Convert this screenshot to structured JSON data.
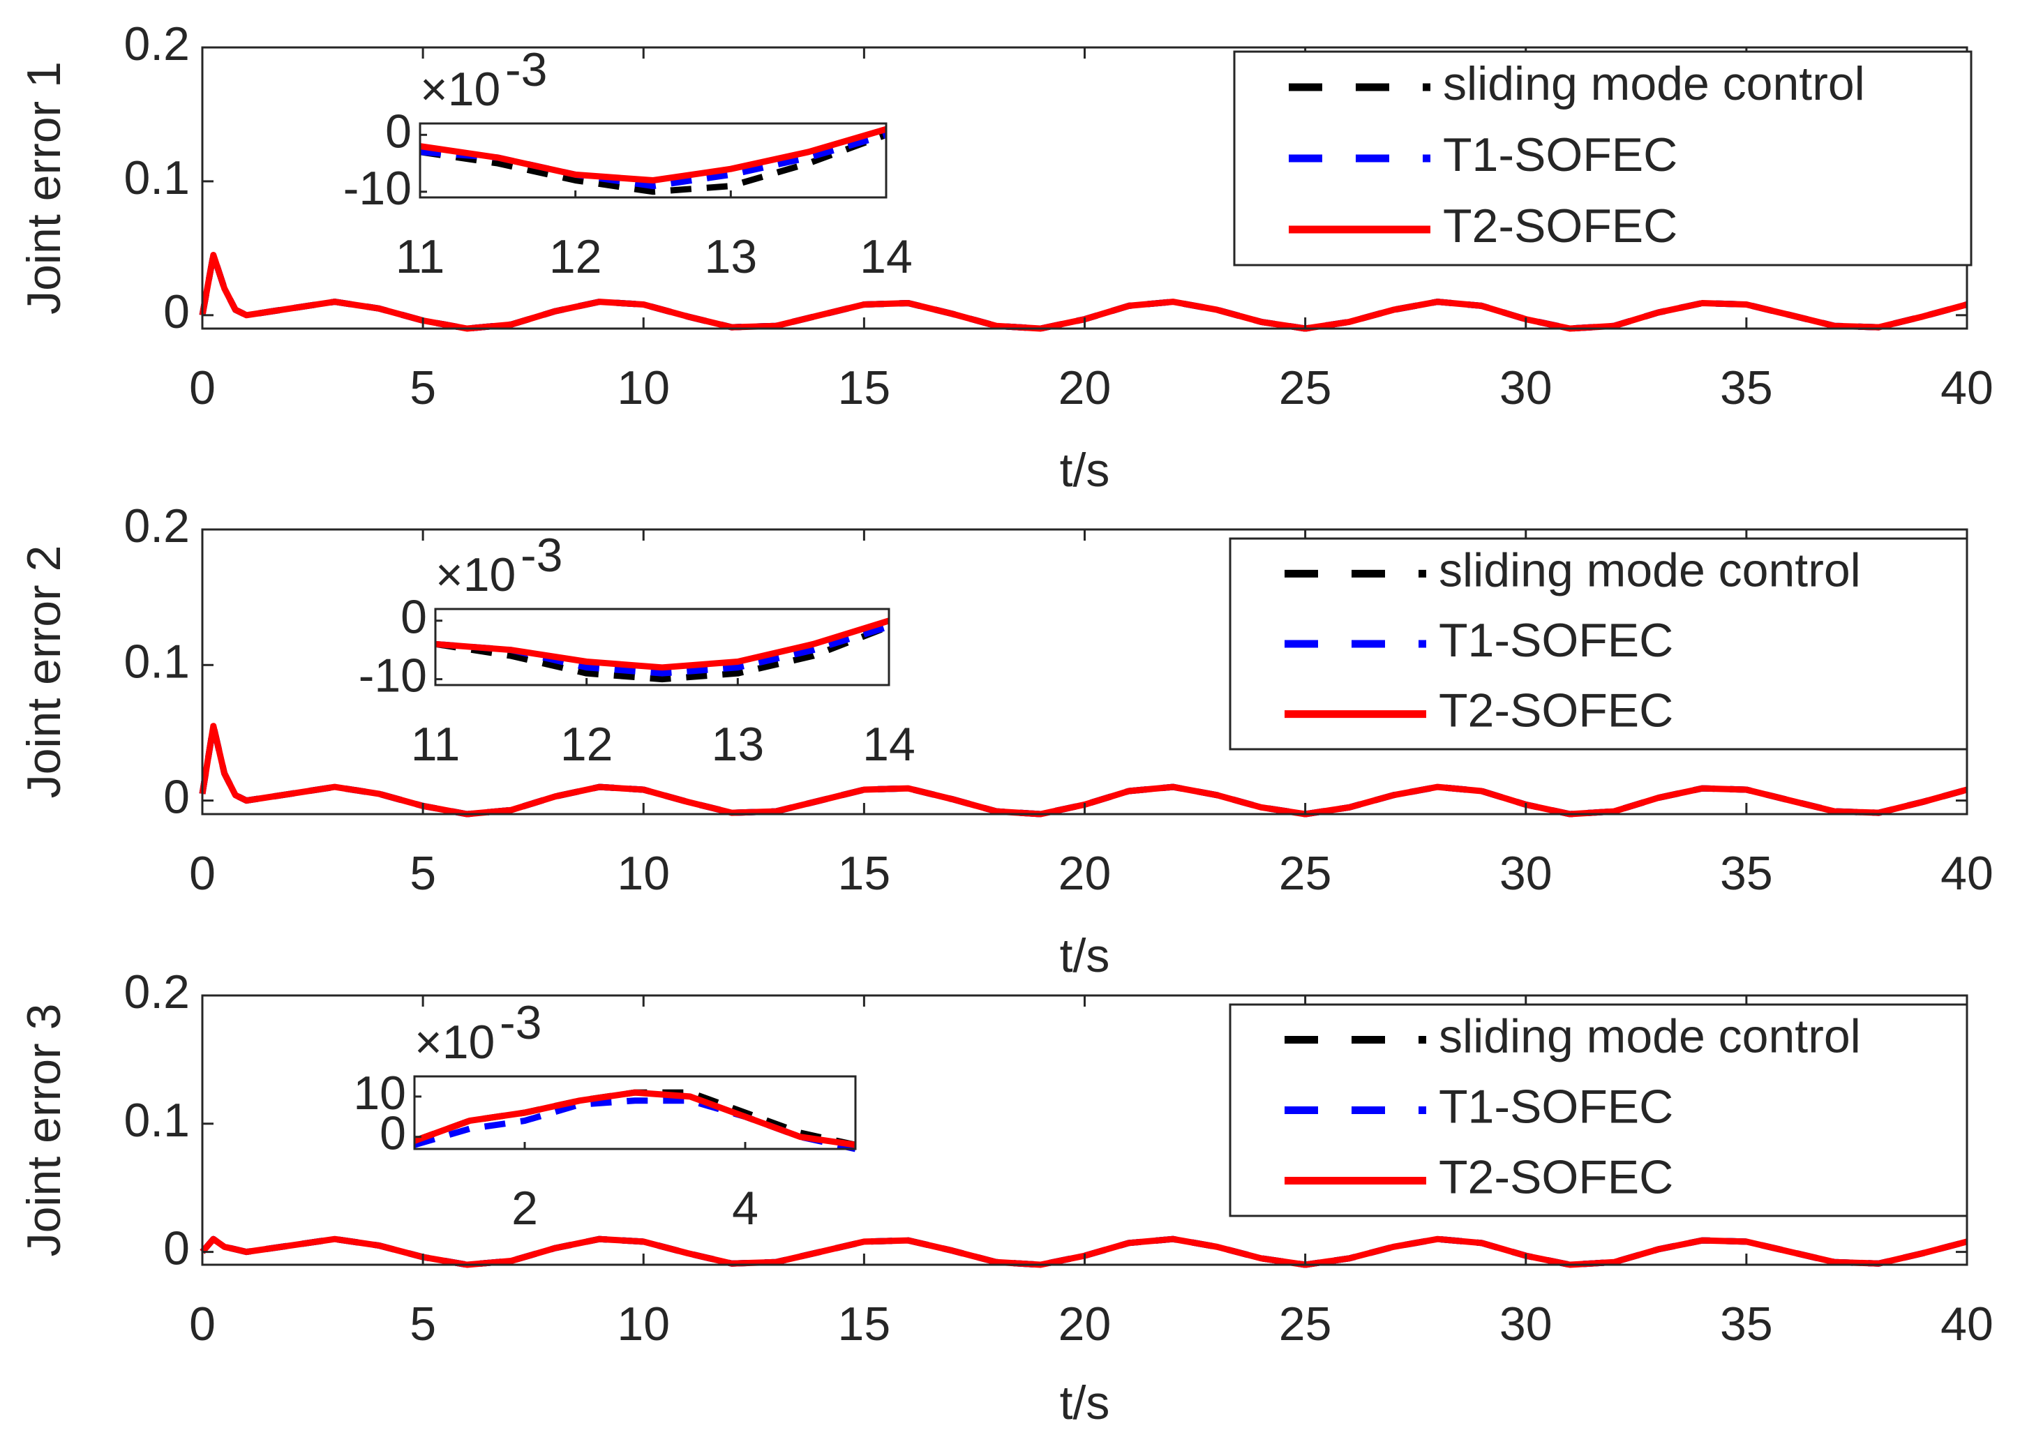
{
  "chart_data": [
    {
      "type": "line",
      "ylabel": "Joint error 1",
      "xlabel": "t/s",
      "legend": "upper right",
      "xlim": [
        0,
        40
      ],
      "xticks": [
        0,
        5,
        10,
        15,
        20,
        25,
        30,
        35,
        40
      ],
      "ylim": [
        -0.01,
        0.2
      ],
      "yticks": [
        0,
        0.1,
        0.2
      ],
      "x": [
        0,
        0.25,
        0.5,
        0.75,
        1,
        2,
        3,
        4,
        5,
        6,
        7,
        8,
        9,
        10,
        11,
        12,
        13,
        14,
        15,
        16,
        17,
        18,
        19,
        20,
        21,
        22,
        23,
        24,
        25,
        26,
        27,
        28,
        29,
        30,
        31,
        32,
        33,
        34,
        35,
        36,
        37,
        38,
        39,
        40
      ],
      "series": [
        {
          "name": "sliding mode control",
          "color": "#000000",
          "linestyle": "dashed",
          "values": [
            0,
            0.045,
            0.02,
            0.004,
            0,
            0.005,
            0.01,
            0.005,
            -0.004,
            -0.01,
            -0.007,
            0.003,
            0.01,
            0.008,
            -0.001,
            -0.009,
            -0.008,
            0,
            0.008,
            0.009,
            0.001,
            -0.008,
            -0.01,
            -0.003,
            0.007,
            0.01,
            0.004,
            -0.005,
            -0.01,
            -0.005,
            0.004,
            0.01,
            0.007,
            -0.003,
            -0.01,
            -0.008,
            0.002,
            0.009,
            0.008,
            0,
            -0.008,
            -0.009,
            -0.001,
            0.008
          ]
        },
        {
          "name": "T1-SOFEC",
          "color": "#0000ff",
          "linestyle": "dashed",
          "values": [
            0,
            0.045,
            0.02,
            0.004,
            0,
            0.005,
            0.01,
            0.005,
            -0.004,
            -0.01,
            -0.007,
            0.003,
            0.01,
            0.008,
            -0.001,
            -0.009,
            -0.008,
            0,
            0.008,
            0.009,
            0.001,
            -0.008,
            -0.01,
            -0.003,
            0.007,
            0.01,
            0.004,
            -0.005,
            -0.01,
            -0.005,
            0.004,
            0.01,
            0.007,
            -0.003,
            -0.01,
            -0.008,
            0.002,
            0.009,
            0.008,
            0,
            -0.008,
            -0.009,
            -0.001,
            0.008
          ]
        },
        {
          "name": "T2-SOFEC",
          "color": "#ff0000",
          "linestyle": "solid",
          "values": [
            0,
            0.045,
            0.02,
            0.004,
            0,
            0.005,
            0.01,
            0.005,
            -0.004,
            -0.01,
            -0.007,
            0.003,
            0.01,
            0.008,
            -0.001,
            -0.009,
            -0.008,
            0,
            0.008,
            0.009,
            0.001,
            -0.008,
            -0.01,
            -0.003,
            0.007,
            0.01,
            0.004,
            -0.005,
            -0.01,
            -0.005,
            0.004,
            0.01,
            0.007,
            -0.003,
            -0.01,
            -0.008,
            0.002,
            0.009,
            0.008,
            0,
            -0.008,
            -0.009,
            -0.001,
            0.008
          ]
        }
      ],
      "inset": {
        "multiplier": "×10",
        "exponent": "-3",
        "xlim": [
          11,
          14
        ],
        "xticks": [
          11,
          12,
          13,
          14
        ],
        "ylim": [
          -11,
          2
        ],
        "yticks": [
          -10,
          0
        ],
        "x": [
          11,
          11.5,
          12,
          12.5,
          13,
          13.5,
          14
        ],
        "series": [
          {
            "color": "#000000",
            "linestyle": "dashed",
            "values": [
              -3,
              -5,
              -8,
              -10,
              -9,
              -5,
              0
            ]
          },
          {
            "color": "#0000ff",
            "linestyle": "dashed",
            "values": [
              -3,
              -4,
              -7,
              -9,
              -7,
              -4,
              0
            ]
          },
          {
            "color": "#ff0000",
            "linestyle": "solid",
            "values": [
              -2,
              -4,
              -7,
              -8,
              -6,
              -3,
              1
            ]
          }
        ]
      }
    },
    {
      "type": "line",
      "ylabel": "Joint error 2",
      "xlabel": "t/s",
      "legend": "upper right",
      "xlim": [
        0,
        40
      ],
      "xticks": [
        0,
        5,
        10,
        15,
        20,
        25,
        30,
        35,
        40
      ],
      "ylim": [
        -0.01,
        0.2
      ],
      "yticks": [
        0,
        0.1,
        0.2
      ],
      "x": [
        0,
        0.25,
        0.5,
        0.75,
        1,
        2,
        3,
        4,
        5,
        6,
        7,
        8,
        9,
        10,
        11,
        12,
        13,
        14,
        15,
        16,
        17,
        18,
        19,
        20,
        21,
        22,
        23,
        24,
        25,
        26,
        27,
        28,
        29,
        30,
        31,
        32,
        33,
        34,
        35,
        36,
        37,
        38,
        39,
        40
      ],
      "series": [
        {
          "name": "sliding mode control",
          "color": "#000000",
          "linestyle": "dashed",
          "values": [
            0.005,
            0.055,
            0.02,
            0.004,
            0,
            0.005,
            0.01,
            0.005,
            -0.004,
            -0.01,
            -0.007,
            0.003,
            0.01,
            0.008,
            -0.001,
            -0.009,
            -0.008,
            0,
            0.008,
            0.009,
            0.001,
            -0.008,
            -0.01,
            -0.003,
            0.007,
            0.01,
            0.004,
            -0.005,
            -0.01,
            -0.005,
            0.004,
            0.01,
            0.007,
            -0.003,
            -0.01,
            -0.008,
            0.002,
            0.009,
            0.008,
            0,
            -0.008,
            -0.009,
            -0.001,
            0.008
          ]
        },
        {
          "name": "T1-SOFEC",
          "color": "#0000ff",
          "linestyle": "dashed",
          "values": [
            0.005,
            0.055,
            0.02,
            0.004,
            0,
            0.005,
            0.01,
            0.005,
            -0.004,
            -0.01,
            -0.007,
            0.003,
            0.01,
            0.008,
            -0.001,
            -0.009,
            -0.008,
            0,
            0.008,
            0.009,
            0.001,
            -0.008,
            -0.01,
            -0.003,
            0.007,
            0.01,
            0.004,
            -0.005,
            -0.01,
            -0.005,
            0.004,
            0.01,
            0.007,
            -0.003,
            -0.01,
            -0.008,
            0.002,
            0.009,
            0.008,
            0,
            -0.008,
            -0.009,
            -0.001,
            0.008
          ]
        },
        {
          "name": "T2-SOFEC",
          "color": "#ff0000",
          "linestyle": "solid",
          "values": [
            0.005,
            0.055,
            0.02,
            0.004,
            0,
            0.005,
            0.01,
            0.005,
            -0.004,
            -0.01,
            -0.007,
            0.003,
            0.01,
            0.008,
            -0.001,
            -0.009,
            -0.008,
            0,
            0.008,
            0.009,
            0.001,
            -0.008,
            -0.01,
            -0.003,
            0.007,
            0.01,
            0.004,
            -0.005,
            -0.01,
            -0.005,
            0.004,
            0.01,
            0.007,
            -0.003,
            -0.01,
            -0.008,
            0.002,
            0.009,
            0.008,
            0,
            -0.008,
            -0.009,
            -0.001,
            0.008
          ]
        }
      ],
      "inset": {
        "multiplier": "×10",
        "exponent": "-3",
        "xlim": [
          11,
          14
        ],
        "xticks": [
          11,
          12,
          13,
          14
        ],
        "ylim": [
          -11,
          2
        ],
        "yticks": [
          -10,
          0
        ],
        "x": [
          11,
          11.5,
          12,
          12.5,
          13,
          13.5,
          14
        ],
        "series": [
          {
            "color": "#000000",
            "linestyle": "dashed",
            "values": [
              -4,
              -6,
              -9,
              -10,
              -9,
              -6,
              -1
            ]
          },
          {
            "color": "#0000ff",
            "linestyle": "dashed",
            "values": [
              -4,
              -5,
              -8,
              -9,
              -8,
              -5,
              -1
            ]
          },
          {
            "color": "#ff0000",
            "linestyle": "solid",
            "values": [
              -4,
              -5,
              -7,
              -8,
              -7,
              -4,
              0
            ]
          }
        ]
      }
    },
    {
      "type": "line",
      "ylabel": "Joint error 3",
      "xlabel": "t/s",
      "legend": "upper right",
      "xlim": [
        0,
        40
      ],
      "xticks": [
        0,
        5,
        10,
        15,
        20,
        25,
        30,
        35,
        40
      ],
      "ylim": [
        -0.01,
        0.2
      ],
      "yticks": [
        0,
        0.1,
        0.2
      ],
      "x": [
        0,
        0.25,
        0.5,
        0.75,
        1,
        2,
        3,
        4,
        5,
        6,
        7,
        8,
        9,
        10,
        11,
        12,
        13,
        14,
        15,
        16,
        17,
        18,
        19,
        20,
        21,
        22,
        23,
        24,
        25,
        26,
        27,
        28,
        29,
        30,
        31,
        32,
        33,
        34,
        35,
        36,
        37,
        38,
        39,
        40
      ],
      "series": [
        {
          "name": "sliding mode control",
          "color": "#000000",
          "linestyle": "dashed",
          "values": [
            0,
            0.01,
            0.004,
            0.002,
            0,
            0.005,
            0.01,
            0.005,
            -0.004,
            -0.01,
            -0.007,
            0.003,
            0.01,
            0.008,
            -0.001,
            -0.009,
            -0.008,
            0,
            0.008,
            0.009,
            0.001,
            -0.008,
            -0.01,
            -0.003,
            0.007,
            0.01,
            0.004,
            -0.005,
            -0.01,
            -0.005,
            0.004,
            0.01,
            0.007,
            -0.003,
            -0.01,
            -0.008,
            0.002,
            0.009,
            0.008,
            0,
            -0.008,
            -0.009,
            -0.001,
            0.008
          ]
        },
        {
          "name": "T1-SOFEC",
          "color": "#0000ff",
          "linestyle": "dashed",
          "values": [
            0,
            0.01,
            0.004,
            0.002,
            0,
            0.005,
            0.01,
            0.005,
            -0.004,
            -0.01,
            -0.007,
            0.003,
            0.01,
            0.008,
            -0.001,
            -0.009,
            -0.008,
            0,
            0.008,
            0.009,
            0.001,
            -0.008,
            -0.01,
            -0.003,
            0.007,
            0.01,
            0.004,
            -0.005,
            -0.01,
            -0.005,
            0.004,
            0.01,
            0.007,
            -0.003,
            -0.01,
            -0.008,
            0.002,
            0.009,
            0.008,
            0,
            -0.008,
            -0.009,
            -0.001,
            0.008
          ]
        },
        {
          "name": "T2-SOFEC",
          "color": "#ff0000",
          "linestyle": "solid",
          "values": [
            0,
            0.01,
            0.004,
            0.002,
            0,
            0.005,
            0.01,
            0.005,
            -0.004,
            -0.01,
            -0.007,
            0.003,
            0.01,
            0.008,
            -0.001,
            -0.009,
            -0.008,
            0,
            0.008,
            0.009,
            0.001,
            -0.008,
            -0.01,
            -0.003,
            0.007,
            0.01,
            0.004,
            -0.005,
            -0.01,
            -0.005,
            0.004,
            0.01,
            0.007,
            -0.003,
            -0.01,
            -0.008,
            0.002,
            0.009,
            0.008,
            0,
            -0.008,
            -0.009,
            -0.001,
            0.008
          ]
        }
      ],
      "inset": {
        "multiplier": "×10",
        "exponent": "-3",
        "xlim": [
          1,
          5
        ],
        "xticks": [
          2,
          4
        ],
        "ylim": [
          -3,
          15
        ],
        "yticks": [
          0,
          10
        ],
        "x": [
          1,
          1.5,
          2,
          2.5,
          3,
          3.5,
          4,
          4.5,
          5
        ],
        "series": [
          {
            "color": "#000000",
            "linestyle": "dashed",
            "values": [
              -1,
              4,
              6,
              9,
              11,
              11,
              6,
              1,
              -2
            ]
          },
          {
            "color": "#0000ff",
            "linestyle": "dashed",
            "values": [
              -2,
              2,
              4,
              8,
              9,
              9,
              5,
              0,
              -3
            ]
          },
          {
            "color": "#ff0000",
            "linestyle": "solid",
            "values": [
              -1,
              4,
              6,
              9,
              11,
              10,
              5,
              0,
              -2
            ]
          }
        ]
      }
    }
  ]
}
